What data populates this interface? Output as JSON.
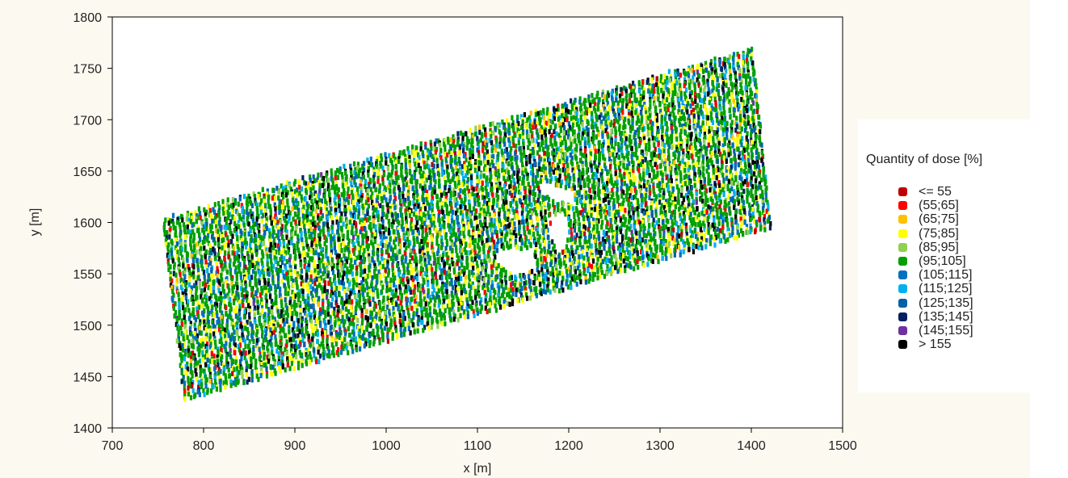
{
  "chart_data": {
    "type": "scatter",
    "xlabel": "x [m]",
    "ylabel": "y [m]",
    "xlim": [
      700,
      1500
    ],
    "ylim": [
      1400,
      1800
    ],
    "xticks": [
      700,
      800,
      900,
      1000,
      1100,
      1200,
      1300,
      1400,
      1500
    ],
    "yticks": [
      1400,
      1450,
      1500,
      1550,
      1600,
      1650,
      1700,
      1750,
      1800
    ],
    "grid": false,
    "legend": {
      "title": "Quantity of dose [%]",
      "position": "right",
      "entries": [
        {
          "label": "<= 55",
          "color": "#c00000"
        },
        {
          "label": "(55;65]",
          "color": "#ff0000"
        },
        {
          "label": "(65;75]",
          "color": "#ffc000"
        },
        {
          "label": "(75;85]",
          "color": "#ffff00"
        },
        {
          "label": "(85;95]",
          "color": "#92d050"
        },
        {
          "label": "(95;105]",
          "color": "#00a000"
        },
        {
          "label": "(105;115]",
          "color": "#0070c0"
        },
        {
          "label": "(115;125]",
          "color": "#00b0f0"
        },
        {
          "label": "(125;135]",
          "color": "#0060a8"
        },
        {
          "label": "(135;145]",
          "color": "#002060"
        },
        {
          "label": "(145;155]",
          "color": "#7030a0"
        },
        {
          "label": "> 155",
          "color": "#000000"
        }
      ]
    },
    "field_boundary": {
      "x": [
        757,
        1400,
        1420,
        780
      ],
      "y": [
        1602,
        1768,
        1595,
        1428
      ]
    },
    "gap_regions": [
      {
        "x": [
          1120,
          1160,
          1165,
          1140,
          1120
        ],
        "y": [
          1572,
          1574,
          1555,
          1548,
          1560
        ]
      },
      {
        "x": [
          1170,
          1205,
          1208,
          1185,
          1170
        ],
        "y": [
          1640,
          1632,
          1617,
          1620,
          1628
        ]
      },
      {
        "x": [
          1180,
          1195,
          1200,
          1190,
          1180
        ],
        "y": [
          1605,
          1610,
          1585,
          1570,
          1585
        ]
      }
    ]
  }
}
